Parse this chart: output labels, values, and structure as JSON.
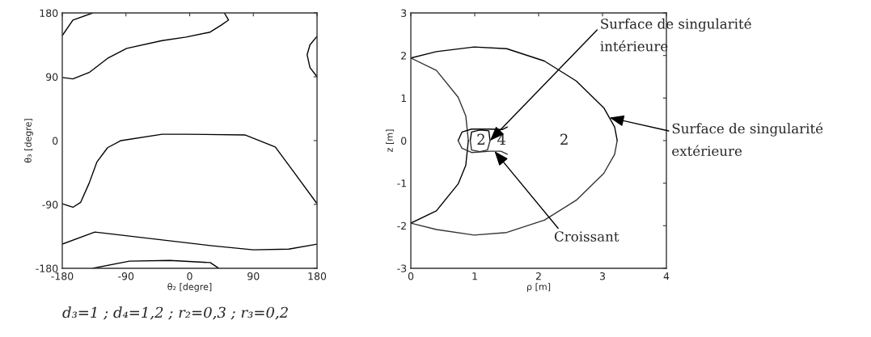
{
  "chart_data": [
    {
      "type": "line",
      "xlabel": "θ₂ [degre]",
      "ylabel": "θ₃ [degre]",
      "xlim": [
        -180,
        180
      ],
      "ylim": [
        -180,
        180
      ],
      "xticks": [
        -180,
        -90,
        0,
        90,
        180
      ],
      "yticks": [
        -180,
        -90,
        0,
        90,
        180
      ],
      "grid": false,
      "legend": false,
      "series": [
        {
          "color": "#000000",
          "x": [
            -180,
            -165,
            -137
          ],
          "values": [
            148,
            170,
            180
          ]
        },
        {
          "color": "#000000",
          "x": [
            -180,
            -165,
            -142,
            -116,
            -89,
            -39,
            -5,
            29,
            45,
            55,
            49
          ],
          "values": [
            89,
            87,
            96,
            116,
            130,
            141,
            146,
            153,
            163,
            170,
            180
          ]
        },
        {
          "color": "#000000",
          "x": [
            180,
            170,
            166,
            170,
            180
          ],
          "values": [
            147,
            135,
            121,
            103,
            90
          ]
        },
        {
          "color": "#000000",
          "x": [
            -180,
            -165,
            -154,
            -142,
            -131,
            -116,
            -97,
            -39,
            -5,
            78,
            121,
            147,
            180
          ],
          "values": [
            -89,
            -94,
            -87,
            -60,
            -30,
            -10,
            0,
            9,
            9,
            8,
            -9,
            -44,
            -89
          ]
        },
        {
          "color": "#000000",
          "x": [
            -180,
            -134,
            29,
            90,
            140,
            180
          ],
          "values": [
            -146,
            -129,
            -148,
            -154,
            -153,
            -146
          ]
        },
        {
          "color": "#000000",
          "x": [
            -137,
            -85,
            -28,
            29,
            41
          ],
          "values": [
            -180,
            -170,
            -169,
            -172,
            -180
          ]
        }
      ],
      "annotations": [
        "d₃=1 ; d₄=1,2 ; r₂=0,3 ; r₃=0,2"
      ]
    },
    {
      "type": "line",
      "xlabel": "ρ [m]",
      "ylabel": "z [m]",
      "xlim": [
        0,
        4
      ],
      "ylim": [
        -3,
        3
      ],
      "xticks": [
        0,
        1,
        2,
        3,
        4
      ],
      "yticks": [
        -3,
        -2,
        -1,
        0,
        1,
        2,
        3
      ],
      "grid": false,
      "legend": false,
      "series": [
        {
          "color": "#000000",
          "x": [
            0,
            0.4,
            0.99,
            1.5,
            2.09,
            2.59,
            3.02,
            3.19,
            3.23
          ],
          "values": [
            1.94,
            2.09,
            2.2,
            2.16,
            1.87,
            1.4,
            0.77,
            0.32,
            0
          ]
        },
        {
          "color": "#333333",
          "x": [
            0,
            0.4,
            0.99,
            1.5,
            2.09,
            2.59,
            3.02,
            3.19,
            3.23
          ],
          "values": [
            -1.94,
            -2.09,
            -2.22,
            -2.16,
            -1.87,
            -1.4,
            -0.77,
            -0.32,
            0
          ]
        },
        {
          "color": "#333333",
          "x": [
            0,
            0.4,
            0.74,
            0.86,
            0.9
          ],
          "values": [
            1.94,
            1.65,
            1.02,
            0.58,
            0
          ]
        },
        {
          "color": "#000000",
          "x": [
            0,
            0.4,
            0.74,
            0.86,
            0.9
          ],
          "values": [
            -1.94,
            -1.65,
            -1.02,
            -0.58,
            0
          ]
        },
        {
          "color": "#000000",
          "x": [
            0.74,
            0.8,
            0.95,
            1.24,
            1.43,
            1.51
          ],
          "values": [
            0,
            0.2,
            0.27,
            0.27,
            0.26,
            0.32
          ]
        },
        {
          "color": "#333333",
          "x": [
            0.74,
            0.8,
            0.95,
            1.24,
            1.41,
            1.51
          ],
          "values": [
            0,
            -0.18,
            -0.28,
            -0.25,
            -0.25,
            -0.32
          ]
        },
        {
          "color": "#000000",
          "x": [
            0.93,
            0.95,
            1.08,
            1.22,
            1.24
          ],
          "values": [
            0,
            0.2,
            0.25,
            0.23,
            0
          ]
        },
        {
          "color": "#333333",
          "x": [
            0.93,
            0.95,
            1.08,
            1.2,
            1.24
          ],
          "values": [
            0,
            -0.22,
            -0.26,
            -0.22,
            0
          ]
        }
      ],
      "annotations": [
        "2",
        "4",
        "2",
        {
          "text": "Surface de singularité\nintérieure",
          "x": 1.24,
          "y": 0
        },
        {
          "text": "Surface de singularité\nextérieure",
          "x": 3.11,
          "y": 0.54
        },
        {
          "text": "Croissant",
          "x": 1.31,
          "y": -0.25
        }
      ]
    }
  ]
}
